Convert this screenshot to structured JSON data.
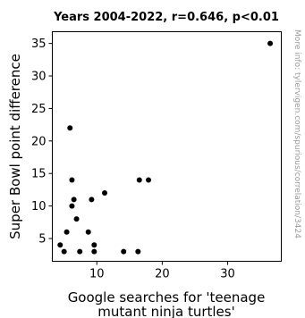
{
  "chart_data": {
    "type": "scatter",
    "title": "Years 2004-2022, r=0.646, p<0.01",
    "xlabel_lines": [
      "Google searches for 'teenage",
      "mutant ninja turtles'"
    ],
    "ylabel": "Super Bowl point difference",
    "watermark": "More info: tylervigen.com/spurious/correlation/3424",
    "xlim": [
      3.2,
      38.2
    ],
    "ylim": [
      1.5,
      36.8
    ],
    "xticks": [
      10,
      20,
      30
    ],
    "yticks": [
      5,
      10,
      15,
      20,
      25,
      30,
      35
    ],
    "point_color": "#000000",
    "points": [
      {
        "x": 4.4,
        "y": 4
      },
      {
        "x": 5.0,
        "y": 3
      },
      {
        "x": 5.4,
        "y": 6
      },
      {
        "x": 5.9,
        "y": 22
      },
      {
        "x": 6.2,
        "y": 14
      },
      {
        "x": 6.2,
        "y": 10
      },
      {
        "x": 6.5,
        "y": 11
      },
      {
        "x": 6.9,
        "y": 8
      },
      {
        "x": 7.4,
        "y": 3
      },
      {
        "x": 8.7,
        "y": 6
      },
      {
        "x": 9.2,
        "y": 11
      },
      {
        "x": 9.6,
        "y": 4
      },
      {
        "x": 9.6,
        "y": 3
      },
      {
        "x": 11.2,
        "y": 12
      },
      {
        "x": 14.1,
        "y": 3
      },
      {
        "x": 16.3,
        "y": 3
      },
      {
        "x": 16.5,
        "y": 14
      },
      {
        "x": 17.9,
        "y": 14
      },
      {
        "x": 36.5,
        "y": 35
      }
    ]
  }
}
